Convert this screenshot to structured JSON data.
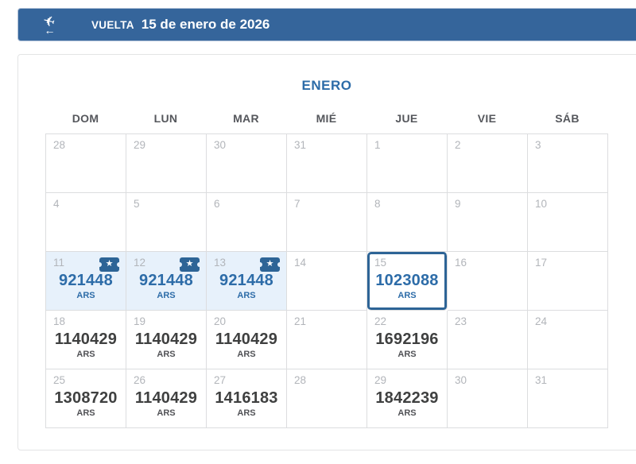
{
  "header": {
    "label": "VUELTA",
    "date": "15 de enero de 2026"
  },
  "icons": {
    "return_plane": "✈",
    "return_arrow": "←",
    "deal_star": "★"
  },
  "calendar": {
    "month_title": "ENERO",
    "day_headers": [
      "DOM",
      "LUN",
      "MAR",
      "MIÉ",
      "JUE",
      "VIE",
      "SÁB"
    ],
    "currency": "ARS",
    "weeks": [
      [
        {
          "day": 28
        },
        {
          "day": 29
        },
        {
          "day": 30
        },
        {
          "day": 31
        },
        {
          "day": 1
        },
        {
          "day": 2
        },
        {
          "day": 3
        }
      ],
      [
        {
          "day": 4
        },
        {
          "day": 5
        },
        {
          "day": 6
        },
        {
          "day": 7
        },
        {
          "day": 8
        },
        {
          "day": 9
        },
        {
          "day": 10
        }
      ],
      [
        {
          "day": 11,
          "price": "921448",
          "state": "deal",
          "badge": true
        },
        {
          "day": 12,
          "price": "921448",
          "state": "deal",
          "badge": true
        },
        {
          "day": 13,
          "price": "921448",
          "state": "deal",
          "badge": true
        },
        {
          "day": 14
        },
        {
          "day": 15,
          "price": "1023088",
          "state": "selected"
        },
        {
          "day": 16
        },
        {
          "day": 17
        }
      ],
      [
        {
          "day": 18,
          "price": "1140429"
        },
        {
          "day": 19,
          "price": "1140429"
        },
        {
          "day": 20,
          "price": "1140429"
        },
        {
          "day": 21
        },
        {
          "day": 22,
          "price": "1692196"
        },
        {
          "day": 23
        },
        {
          "day": 24
        }
      ],
      [
        {
          "day": 25,
          "price": "1308720"
        },
        {
          "day": 26,
          "price": "1140429"
        },
        {
          "day": 27,
          "price": "1416183"
        },
        {
          "day": 28
        },
        {
          "day": 29,
          "price": "1842239"
        },
        {
          "day": 30
        },
        {
          "day": 31
        }
      ]
    ]
  },
  "colors": {
    "header_bar": "#35659b",
    "accent_blue": "#2d6ca8",
    "deal_bg": "#e7f1fb",
    "selected_border": "#2d6496",
    "price_dark": "#3f4040",
    "grid_line": "#dcdddf",
    "muted_day": "#b2b5ba"
  }
}
